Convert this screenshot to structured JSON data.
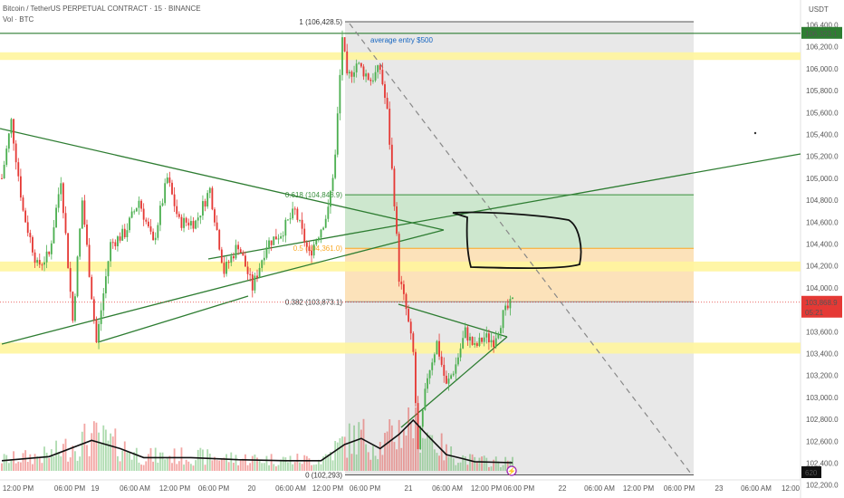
{
  "header": {
    "symbol": "Bitcoin / TetherUS PERPETUAL CONTRACT · 15 · BINANCE",
    "volume_label": "Vol · BTC"
  },
  "currency": "USDT",
  "colors": {
    "up": "#4CAF50",
    "down": "#E53935",
    "zone": "#FFF59D",
    "green_zone": "#C8E6C9",
    "orange_zone": "#FFE0B2",
    "grey_zone": "#E0E0E0",
    "trend": "#2E7D32",
    "fib": "#388E3C",
    "price_badge": "#E53935",
    "level_badge": "#2E7D32"
  },
  "price_badges": [
    {
      "name": "level-badge",
      "price": 106323.1,
      "text": "106,323.1"
    },
    {
      "name": "last-price-badge",
      "price": 103868.9,
      "text": "103,868.9",
      "countdown": "05:21"
    }
  ],
  "volume_badge": "620",
  "annotation": "average entry $500",
  "chart_data": {
    "type": "candlestick",
    "title": "Bitcoin / TetherUS PERPETUAL CONTRACT · 15 · BINANCE",
    "interval": "15",
    "y_ticks": [
      106400,
      106200,
      106000,
      105800,
      105600,
      105400,
      105200,
      105000,
      104800,
      104600,
      104400,
      104200,
      104000,
      103800,
      103600,
      103400,
      103200,
      103000,
      102800,
      102600,
      102400,
      102200,
      102000
    ],
    "y_tick_labels": [
      "106,400.0",
      "106,200.0",
      "106,000.0",
      "105,800.0",
      "105,600.0",
      "105,400.0",
      "105,200.0",
      "105,000.0",
      "104,800.0",
      "104,600.0",
      "104,400.0",
      "104,200.0",
      "104,000.0",
      "103,800.0",
      "103,600.0",
      "103,400.0",
      "103,200.0",
      "103,000.0",
      "102,800.0",
      "102,600.0",
      "102,400.0",
      "102,200.0",
      "102,000.0"
    ],
    "ylim": [
      102000,
      106450
    ],
    "x_tick_labels": [
      "12:00 PM",
      "06:00 PM",
      "19",
      "06:00 AM",
      "12:00 PM",
      "06:00 PM",
      "20",
      "06:00 AM",
      "12:00 PM",
      "06:00 PM",
      "21",
      "06:00 AM",
      "12:00 PM",
      "06:00 PM",
      "22",
      "06:00 AM",
      "12:00 PM",
      "06:00 PM",
      "23",
      "06:00 AM",
      "12:00"
    ],
    "fib_levels": [
      {
        "ratio": "1",
        "price": 106428.5,
        "label": "1 (106,428.5)"
      },
      {
        "ratio": "0.618",
        "price": 104848.9,
        "label": "0.618 (104,848.9)"
      },
      {
        "ratio": "0.5",
        "price": 104361.0,
        "label": "0.5 (104,361.0)"
      },
      {
        "ratio": "0.382",
        "price": 103873.1,
        "label": "0.382 (103,873.1)"
      },
      {
        "ratio": "0",
        "price": 102293.0,
        "label": "0 (102,293)"
      }
    ],
    "zones": [
      {
        "from": 106080,
        "to": 106150
      },
      {
        "from": 104150,
        "to": 104240
      },
      {
        "from": 103400,
        "to": 103500
      }
    ],
    "resistance_line": 106323.1,
    "last_price": 103868.9,
    "price_path": [
      {
        "t": 0,
        "p": 105000
      },
      {
        "t": 4,
        "p": 105520
      },
      {
        "t": 9,
        "p": 104700
      },
      {
        "t": 15,
        "p": 104200
      },
      {
        "t": 20,
        "p": 104300
      },
      {
        "t": 25,
        "p": 105000
      },
      {
        "t": 30,
        "p": 103700
      },
      {
        "t": 34,
        "p": 104800
      },
      {
        "t": 40,
        "p": 103500
      },
      {
        "t": 46,
        "p": 104400
      },
      {
        "t": 52,
        "p": 104500
      },
      {
        "t": 58,
        "p": 104800
      },
      {
        "t": 64,
        "p": 104400
      },
      {
        "t": 70,
        "p": 105000
      },
      {
        "t": 75,
        "p": 104600
      },
      {
        "t": 82,
        "p": 104600
      },
      {
        "t": 88,
        "p": 104900
      },
      {
        "t": 94,
        "p": 104150
      },
      {
        "t": 100,
        "p": 104400
      },
      {
        "t": 106,
        "p": 104000
      },
      {
        "t": 112,
        "p": 104400
      },
      {
        "t": 118,
        "p": 104500
      },
      {
        "t": 124,
        "p": 104700
      },
      {
        "t": 130,
        "p": 104300
      },
      {
        "t": 134,
        "p": 104500
      },
      {
        "t": 138,
        "p": 104700
      },
      {
        "t": 141,
        "p": 105200
      },
      {
        "t": 144,
        "p": 106300
      },
      {
        "t": 146,
        "p": 105900
      },
      {
        "t": 150,
        "p": 106050
      },
      {
        "t": 156,
        "p": 105900
      },
      {
        "t": 160,
        "p": 106000
      },
      {
        "t": 163,
        "p": 105600
      },
      {
        "t": 166,
        "p": 104800
      },
      {
        "t": 168,
        "p": 104100
      },
      {
        "t": 171,
        "p": 103800
      },
      {
        "t": 174,
        "p": 103400
      },
      {
        "t": 176,
        "p": 102500
      },
      {
        "t": 180,
        "p": 103200
      },
      {
        "t": 184,
        "p": 103500
      },
      {
        "t": 188,
        "p": 103100
      },
      {
        "t": 192,
        "p": 103300
      },
      {
        "t": 196,
        "p": 103600
      },
      {
        "t": 200,
        "p": 103450
      },
      {
        "t": 204,
        "p": 103550
      },
      {
        "t": 208,
        "p": 103520
      },
      {
        "t": 212,
        "p": 103750
      },
      {
        "t": 216,
        "p": 103870
      }
    ],
    "volume_max": 1000,
    "volume_ma_path": [
      {
        "t": 0,
        "v": 100
      },
      {
        "t": 20,
        "v": 140
      },
      {
        "t": 38,
        "v": 300
      },
      {
        "t": 50,
        "v": 220
      },
      {
        "t": 60,
        "v": 130
      },
      {
        "t": 80,
        "v": 130
      },
      {
        "t": 100,
        "v": 110
      },
      {
        "t": 120,
        "v": 100
      },
      {
        "t": 135,
        "v": 100
      },
      {
        "t": 145,
        "v": 260
      },
      {
        "t": 152,
        "v": 320
      },
      {
        "t": 160,
        "v": 220
      },
      {
        "t": 168,
        "v": 360
      },
      {
        "t": 174,
        "v": 500
      },
      {
        "t": 180,
        "v": 350
      },
      {
        "t": 188,
        "v": 160
      },
      {
        "t": 200,
        "v": 90
      },
      {
        "t": 216,
        "v": 80
      }
    ]
  }
}
